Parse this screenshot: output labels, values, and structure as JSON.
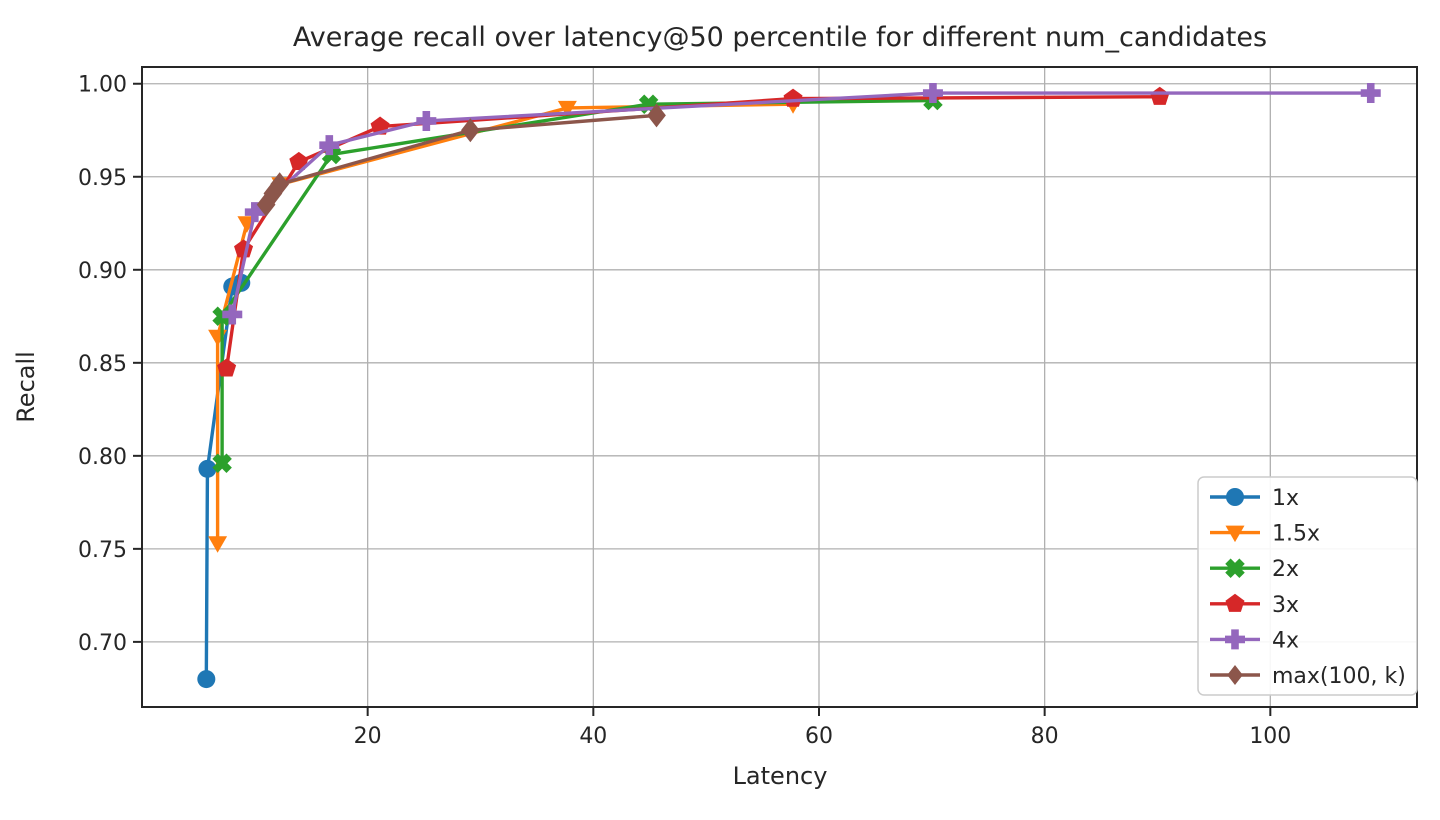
{
  "chart_data": {
    "type": "line",
    "title": "Average recall over latency@50 percentile for different num_candidates",
    "xlabel": "Latency",
    "ylabel": "Recall",
    "xlim": [
      0,
      113
    ],
    "ylim": [
      0.665,
      1.009
    ],
    "xticks": [
      20,
      40,
      60,
      80,
      100
    ],
    "yticks": [
      0.7,
      0.75,
      0.8,
      0.85,
      0.9,
      0.95,
      1.0
    ],
    "grid": true,
    "grid_color": "#b0b0b0",
    "spine_color": "#262626",
    "legend_position": "lower right",
    "series": [
      {
        "name": "1x",
        "color": "#1f77b4",
        "marker": "circle",
        "marker_size": 9,
        "points": [
          [
            5.7,
            0.68
          ],
          [
            5.8,
            0.793
          ],
          [
            8.0,
            0.891
          ],
          [
            8.8,
            0.893
          ]
        ]
      },
      {
        "name": "1.5x",
        "color": "#ff7f0e",
        "marker": "triangle-down",
        "marker_size": 10,
        "points": [
          [
            6.7,
            0.753
          ],
          [
            6.7,
            0.864
          ],
          [
            9.3,
            0.925
          ],
          [
            12.3,
            0.946
          ],
          [
            37.7,
            0.987
          ],
          [
            57.7,
            0.989
          ]
        ]
      },
      {
        "name": "2x",
        "color": "#2ca02c",
        "marker": "x",
        "marker_size": 10,
        "points": [
          [
            7.1,
            0.796
          ],
          [
            7.1,
            0.875
          ],
          [
            16.8,
            0.962
          ],
          [
            44.9,
            0.989
          ],
          [
            70.1,
            0.991
          ]
        ]
      },
      {
        "name": "3x",
        "color": "#d62728",
        "marker": "pentagon",
        "marker_size": 10,
        "points": [
          [
            7.5,
            0.847
          ],
          [
            9.0,
            0.911
          ],
          [
            13.9,
            0.958
          ],
          [
            21.1,
            0.977
          ],
          [
            57.7,
            0.992
          ],
          [
            90.2,
            0.993
          ]
        ]
      },
      {
        "name": "4x",
        "color": "#9467bd",
        "marker": "plus",
        "marker_size": 10,
        "points": [
          [
            8.0,
            0.876
          ],
          [
            10.0,
            0.931
          ],
          [
            16.6,
            0.967
          ],
          [
            25.2,
            0.98
          ],
          [
            70.1,
            0.995
          ],
          [
            108.9,
            0.995
          ]
        ]
      },
      {
        "name": "max(100, k)",
        "color": "#8c564b",
        "marker": "diamond",
        "marker_size": 12,
        "points": [
          [
            11.0,
            0.935
          ],
          [
            11.6,
            0.941
          ],
          [
            12.2,
            0.946
          ],
          [
            29.1,
            0.975
          ],
          [
            45.6,
            0.983
          ]
        ]
      }
    ]
  }
}
